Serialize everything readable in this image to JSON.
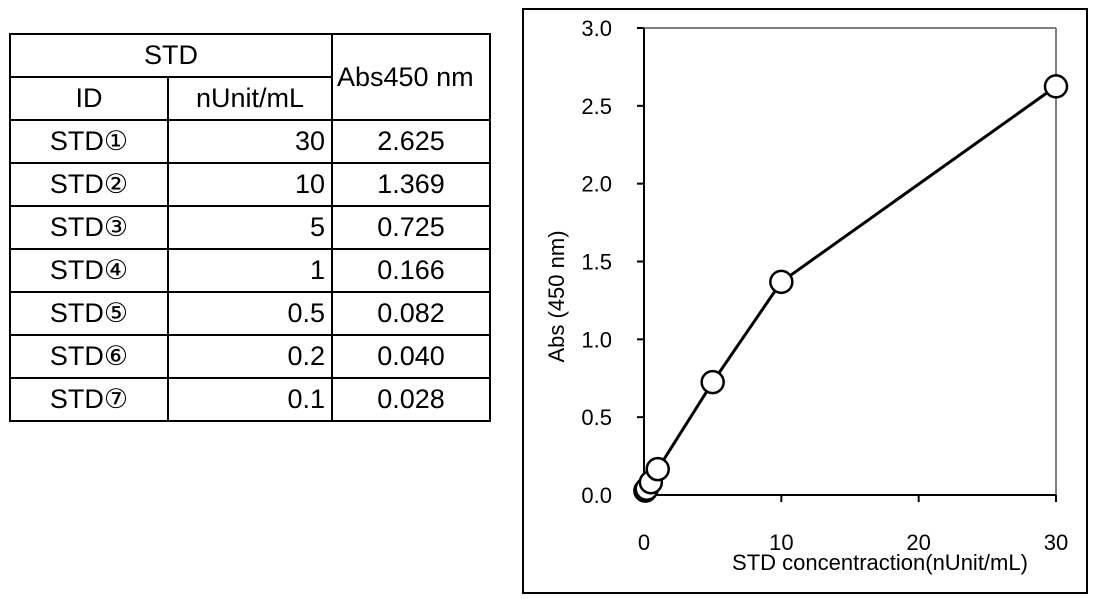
{
  "table": {
    "group_header": "STD",
    "col_id": "ID",
    "col_conc": "nUnit/mL",
    "col_abs": "Abs450 nm",
    "rows": [
      {
        "id": "STD①",
        "conc": "30",
        "abs": "2.625"
      },
      {
        "id": "STD②",
        "conc": "10",
        "abs": "1.369"
      },
      {
        "id": "STD③",
        "conc": "5",
        "abs": "0.725"
      },
      {
        "id": "STD④",
        "conc": "1",
        "abs": "0.166"
      },
      {
        "id": "STD⑤",
        "conc": "0.5",
        "abs": "0.082"
      },
      {
        "id": "STD⑥",
        "conc": "0.2",
        "abs": "0.040"
      },
      {
        "id": "STD⑦",
        "conc": "0.1",
        "abs": "0.028"
      }
    ]
  },
  "chart_data": {
    "type": "line",
    "title": "",
    "xlabel": "STD concentraction(nUnit/mL)",
    "ylabel": "Abs (450 nm)",
    "xlim": [
      0,
      30
    ],
    "ylim": [
      0,
      3.0
    ],
    "x_ticks": [
      "0",
      "10",
      "20",
      "30"
    ],
    "y_ticks": [
      "0.0",
      "0.5",
      "1.0",
      "1.5",
      "2.0",
      "2.5",
      "3.0"
    ],
    "grid": false,
    "markers": "open-circle",
    "series": [
      {
        "x": [
          0.1,
          0.2,
          0.5,
          1,
          5,
          10,
          30
        ],
        "y": [
          0.028,
          0.04,
          0.082,
          0.166,
          0.725,
          1.369,
          2.625
        ]
      }
    ]
  }
}
